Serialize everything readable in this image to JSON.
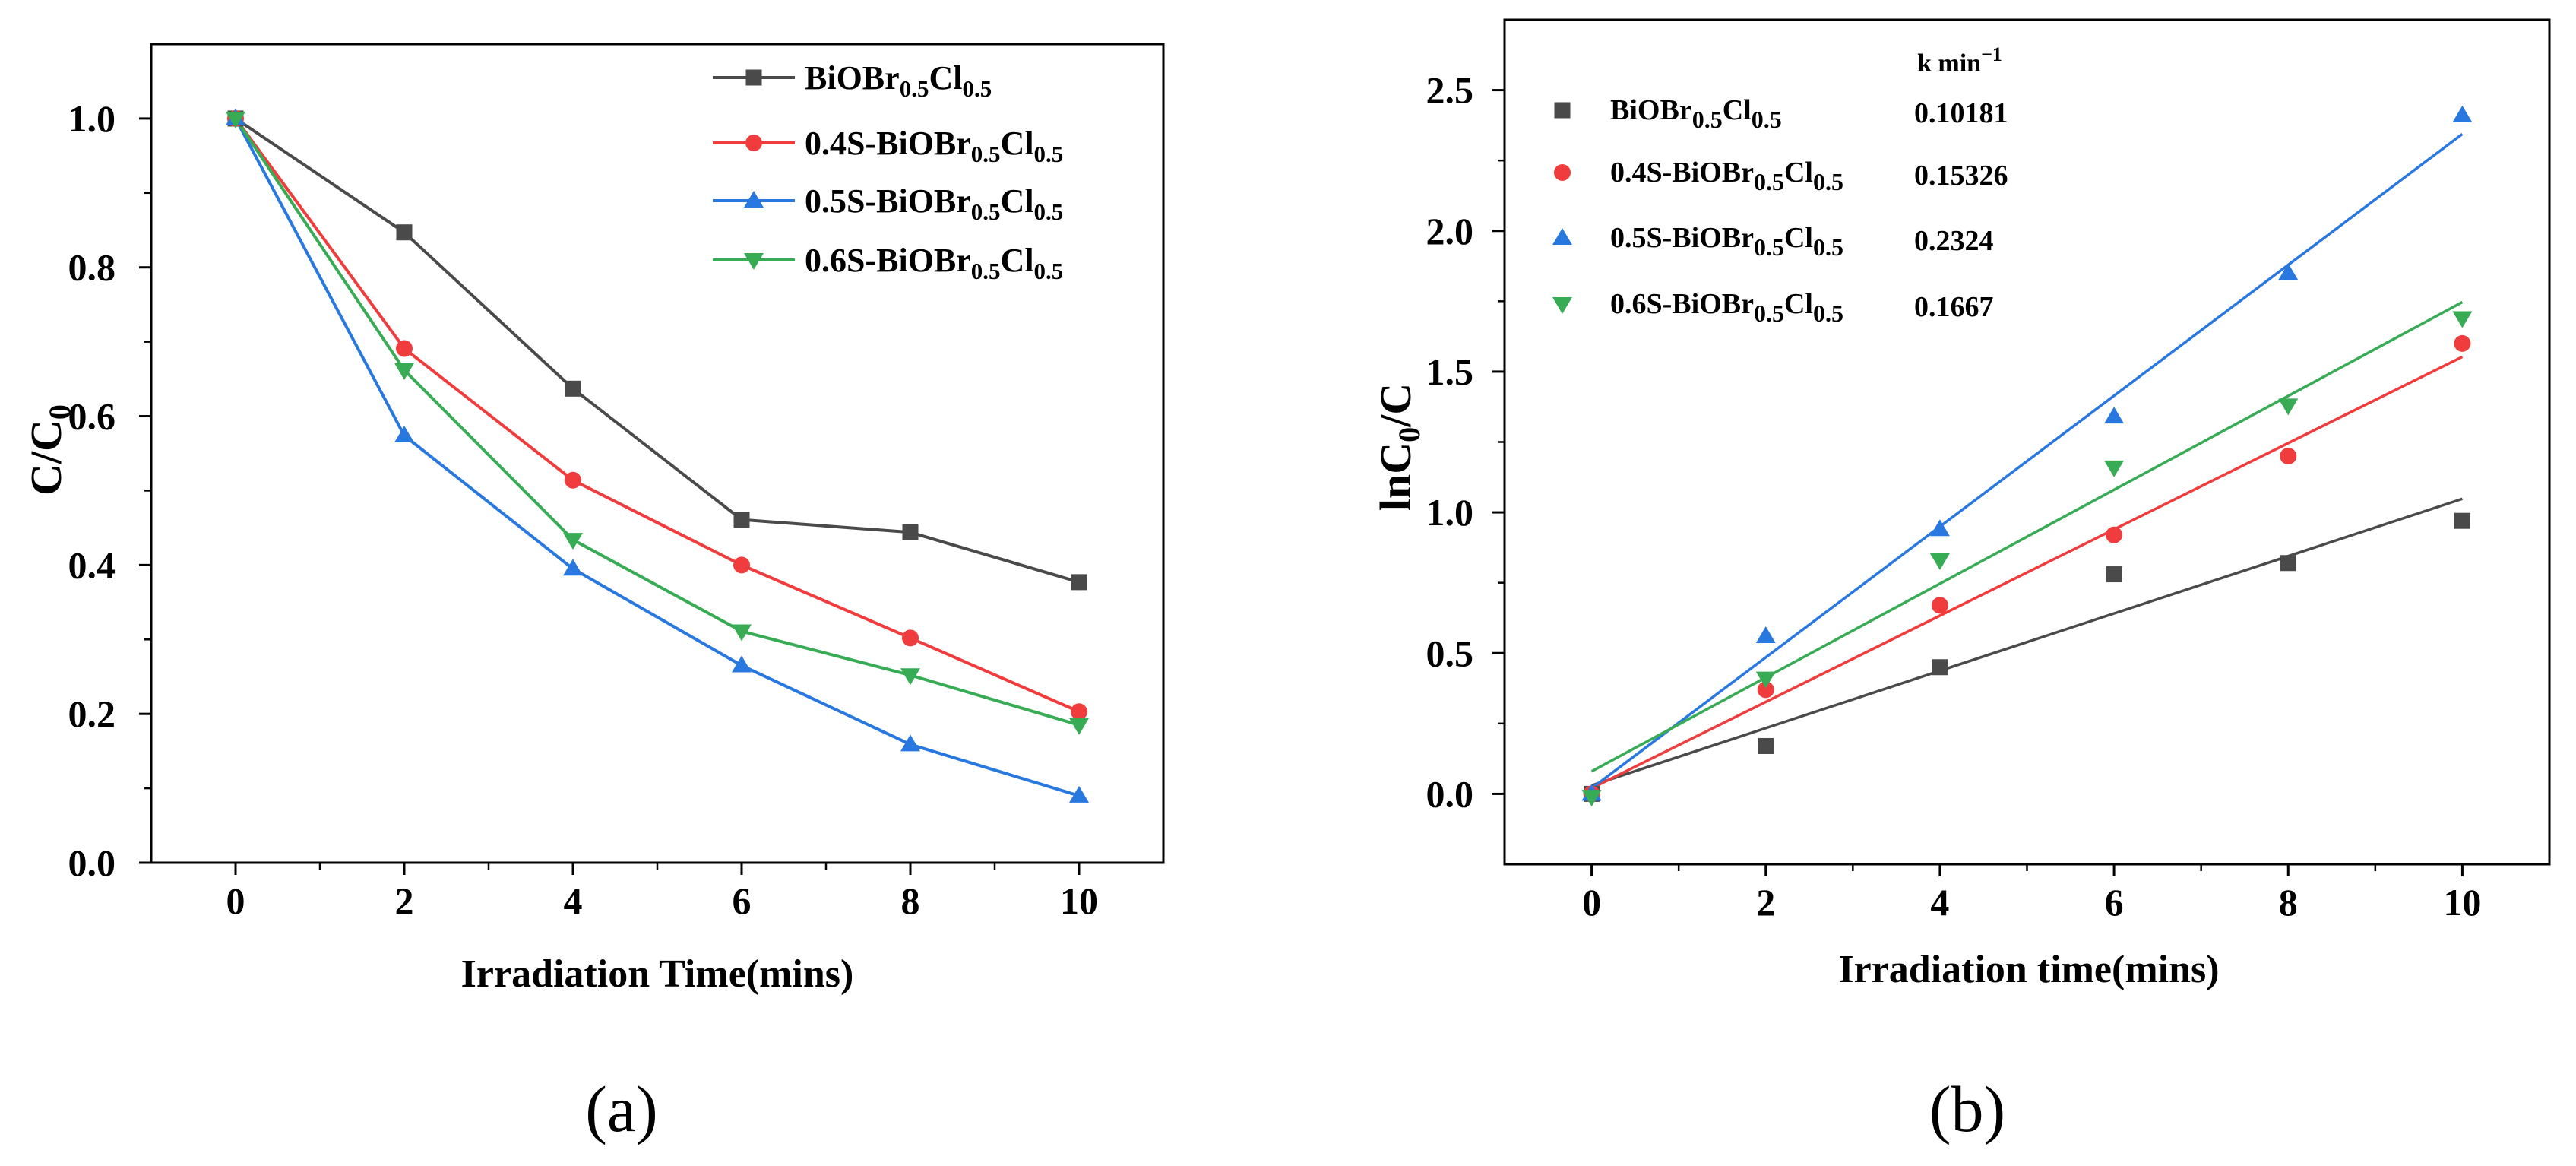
{
  "chart_data": [
    {
      "caption": "(a)",
      "type": "line",
      "xlabel": "Irradiation Time(mins)",
      "ylabel_parts": [
        {
          "text": "C/C"
        },
        {
          "text": "0",
          "sub": true
        }
      ],
      "xlim": [
        -1,
        11
      ],
      "ylim": [
        0,
        1.1
      ],
      "xticks": [
        0,
        2,
        4,
        6,
        8,
        10
      ],
      "xtick_labels": [
        "0",
        "2",
        "4",
        "6",
        "8",
        "10"
      ],
      "yticks": [
        0,
        0.2,
        0.4,
        0.6,
        0.8,
        1.0
      ],
      "ytick_labels": [
        "0.0",
        "0.2",
        "0.4",
        "0.6",
        "0.8",
        "1.0"
      ],
      "grid": false,
      "legend_placement": "top-right",
      "x": [
        0,
        2,
        4,
        6,
        8,
        10
      ],
      "series": [
        {
          "label_parts": [
            {
              "text": "BiOBr"
            },
            {
              "text": "0.5",
              "sub": true
            },
            {
              "text": "Cl"
            },
            {
              "text": "0.5",
              "sub": true
            }
          ],
          "marker": "square",
          "color": "#4a4a4a",
          "values": [
            1.0,
            0.847,
            0.637,
            0.461,
            0.444,
            0.377
          ]
        },
        {
          "label_parts": [
            {
              "text": "0.4S-BiOBr"
            },
            {
              "text": "0.5",
              "sub": true
            },
            {
              "text": "Cl"
            },
            {
              "text": "0.5",
              "sub": true
            }
          ],
          "marker": "circle",
          "color": "#f03c3c",
          "values": [
            1.0,
            0.691,
            0.514,
            0.4,
            0.302,
            0.203
          ]
        },
        {
          "label_parts": [
            {
              "text": "0.5S-BiOBr"
            },
            {
              "text": "0.5",
              "sub": true
            },
            {
              "text": "Cl"
            },
            {
              "text": "0.5",
              "sub": true
            }
          ],
          "marker": "triangle-up",
          "color": "#2878e0",
          "values": [
            1.0,
            0.574,
            0.395,
            0.265,
            0.159,
            0.09
          ]
        },
        {
          "label_parts": [
            {
              "text": "0.6S-BiOBr"
            },
            {
              "text": "0.5",
              "sub": true
            },
            {
              "text": "Cl"
            },
            {
              "text": "0.5",
              "sub": true
            }
          ],
          "marker": "triangle-down",
          "color": "#38ab55",
          "values": [
            1.0,
            0.662,
            0.434,
            0.311,
            0.252,
            0.185
          ]
        }
      ]
    },
    {
      "caption": "(b)",
      "type": "scatter",
      "xlabel": "Irradiation time(mins)",
      "ylabel_parts": [
        {
          "text": "lnC"
        },
        {
          "text": "0",
          "sub": true
        },
        {
          "text": "/C"
        }
      ],
      "xlim": [
        -1,
        11
      ],
      "ylim": [
        -0.25,
        2.75
      ],
      "xticks": [
        0,
        2,
        4,
        6,
        8,
        10
      ],
      "xtick_labels": [
        "0",
        "2",
        "4",
        "6",
        "8",
        "10"
      ],
      "yticks": [
        0,
        0.5,
        1.0,
        1.5,
        2.0,
        2.5
      ],
      "ytick_labels": [
        "0.0",
        "0.5",
        "1.0",
        "1.5",
        "2.0",
        "2.5"
      ],
      "grid": false,
      "legend_placement": "top-left",
      "legend_header_parts": [
        {
          "text": "k min"
        },
        {
          "text": "−1",
          "sup": true
        }
      ],
      "x": [
        0,
        2,
        4,
        6,
        8,
        10
      ],
      "series": [
        {
          "label_parts": [
            {
              "text": "BiOBr"
            },
            {
              "text": "0.5",
              "sub": true
            },
            {
              "text": "Cl"
            },
            {
              "text": "0.5",
              "sub": true
            }
          ],
          "k": "0.10181",
          "intercept": 0.03,
          "marker": "square",
          "color": "#4a4a4a",
          "values": [
            0.0,
            0.17,
            0.45,
            0.78,
            0.82,
            0.97
          ]
        },
        {
          "label_parts": [
            {
              "text": "0.4S-BiOBr"
            },
            {
              "text": "0.5",
              "sub": true
            },
            {
              "text": "Cl"
            },
            {
              "text": "0.5",
              "sub": true
            }
          ],
          "k": "0.15326",
          "intercept": 0.02,
          "marker": "circle",
          "color": "#f03c3c",
          "values": [
            0.0,
            0.37,
            0.67,
            0.92,
            1.2,
            1.6
          ]
        },
        {
          "label_parts": [
            {
              "text": "0.5S-BiOBr"
            },
            {
              "text": "0.5",
              "sub": true
            },
            {
              "text": "Cl"
            },
            {
              "text": "0.5",
              "sub": true
            }
          ],
          "k": "0.2324",
          "intercept": 0.02,
          "marker": "triangle-up",
          "color": "#2878e0",
          "values": [
            0.0,
            0.56,
            0.94,
            1.34,
            1.85,
            2.41
          ]
        },
        {
          "label_parts": [
            {
              "text": "0.6S-BiOBr"
            },
            {
              "text": "0.5",
              "sub": true
            },
            {
              "text": "Cl"
            },
            {
              "text": "0.5",
              "sub": true
            }
          ],
          "k": "0.1667",
          "intercept": 0.08,
          "marker": "triangle-down",
          "color": "#38ab55",
          "values": [
            -0.01,
            0.41,
            0.83,
            1.16,
            1.38,
            1.69
          ]
        }
      ]
    }
  ]
}
